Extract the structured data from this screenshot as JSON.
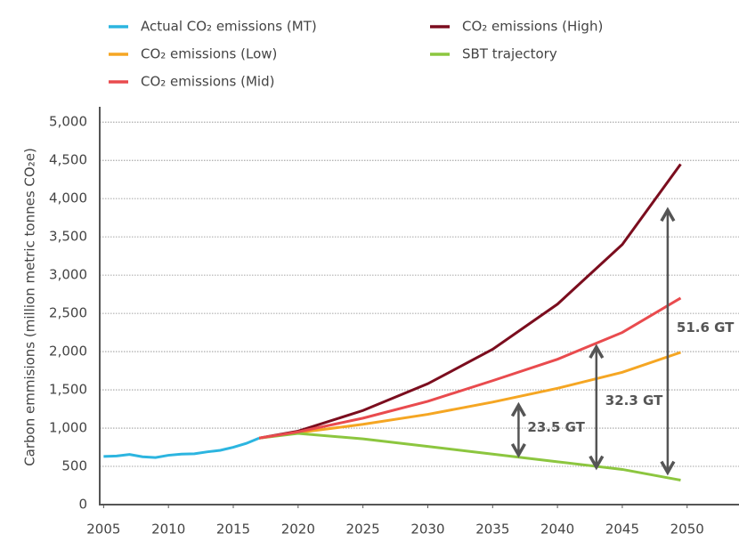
{
  "chart_data": {
    "type": "line",
    "ylabel": "Carbon emmisions (million metric tonnes CO₂e)",
    "xlim": [
      2004.7,
      2054
    ],
    "ylim": [
      0,
      5200
    ],
    "xticks": [
      2005,
      2010,
      2015,
      2020,
      2025,
      2030,
      2035,
      2040,
      2045,
      2050
    ],
    "yticks": [
      0,
      500,
      {
        "value": 1000,
        "label": "1,000"
      },
      {
        "value": 1500,
        "label": "1,500"
      },
      {
        "value": 2000,
        "label": "2,000"
      },
      {
        "value": 2500,
        "label": "2,500"
      },
      {
        "value": 3000,
        "label": "3,000"
      },
      {
        "value": 3500,
        "label": "3,500"
      },
      {
        "value": 4000,
        "label": "4,000"
      },
      {
        "value": 4500,
        "label": "4,500"
      },
      {
        "value": 5000,
        "label": "5,000"
      }
    ],
    "grid": true,
    "series": [
      {
        "name": "Actual CO₂ emissions (MT)",
        "color": "#2cb5e0",
        "x": [
          2005,
          2006,
          2007,
          2008,
          2009,
          2010,
          2011,
          2012,
          2013,
          2014,
          2015,
          2016,
          2017
        ],
        "values": [
          630,
          635,
          655,
          625,
          615,
          645,
          660,
          665,
          690,
          710,
          750,
          800,
          870
        ]
      },
      {
        "name": "CO₂ emissions (High)",
        "color": "#7b0d1e",
        "x": [
          2017,
          2020,
          2025,
          2030,
          2035,
          2040,
          2045,
          2049.5
        ],
        "values": [
          870,
          960,
          1230,
          1580,
          2030,
          2620,
          3400,
          4450
        ]
      },
      {
        "name": "CO₂ emissions (Low)",
        "color": "#f5a623",
        "x": [
          2017,
          2020,
          2025,
          2030,
          2035,
          2040,
          2045,
          2049.5
        ],
        "values": [
          870,
          940,
          1050,
          1180,
          1340,
          1520,
          1730,
          1990
        ]
      },
      {
        "name": "SBT trajectory",
        "color": "#8cc63f",
        "x": [
          2017,
          2020,
          2025,
          2030,
          2035,
          2040,
          2045,
          2049.5
        ],
        "values": [
          870,
          930,
          860,
          760,
          660,
          560,
          460,
          320
        ]
      },
      {
        "name": "CO₂ emissions (Mid)",
        "color": "#e94b4e",
        "x": [
          2017,
          2020,
          2025,
          2030,
          2035,
          2040,
          2045,
          2049.5
        ],
        "values": [
          870,
          950,
          1130,
          1350,
          1620,
          1900,
          2250,
          2700
        ]
      }
    ],
    "annotations": [
      {
        "text": "23.5 GT",
        "x": 2037,
        "y_top": 1300,
        "y_bottom": 650
      },
      {
        "text": "32.3 GT",
        "x": 2043,
        "y_top": 2060,
        "y_bottom": 490
      },
      {
        "text": "51.6 GT",
        "x": 2048.5,
        "y_top": 3850,
        "y_bottom": 420
      }
    ]
  }
}
